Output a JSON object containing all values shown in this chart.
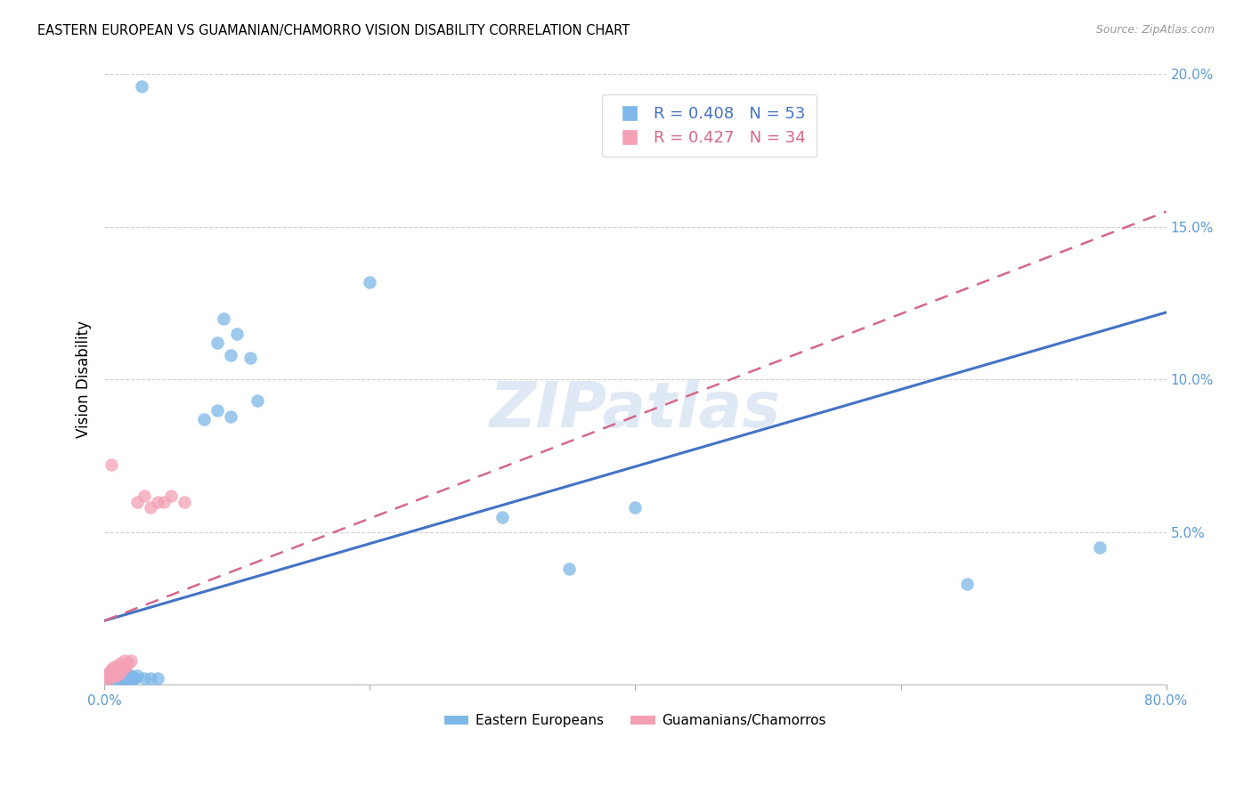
{
  "title": "EASTERN EUROPEAN VS GUAMANIAN/CHAMORRO VISION DISABILITY CORRELATION CHART",
  "source": "Source: ZipAtlas.com",
  "ylabel": "Vision Disability",
  "xlabel": "",
  "xlim": [
    0.0,
    0.8
  ],
  "ylim": [
    0.0,
    0.2
  ],
  "xticks": [
    0.0,
    0.2,
    0.4,
    0.6,
    0.8
  ],
  "yticks": [
    0.0,
    0.05,
    0.1,
    0.15,
    0.2
  ],
  "xtick_labels": [
    "0.0%",
    "",
    "",
    "",
    "80.0%"
  ],
  "ytick_labels": [
    "",
    "5.0%",
    "10.0%",
    "15.0%",
    "20.0%"
  ],
  "blue_color": "#7db8e8",
  "pink_color": "#f4a0b5",
  "blue_line_color": "#4472c4",
  "pink_line_color": "#d4688a",
  "legend_blue_r": "R = 0.408",
  "legend_blue_n": "N = 53",
  "legend_pink_r": "R = 0.427",
  "legend_pink_n": "N = 34",
  "legend_label_blue": "Eastern Europeans",
  "legend_label_pink": "Guamanians/Chamorros",
  "watermark": "ZIPatlas",
  "title_fontsize": 11,
  "axis_color": "#5b9bd5",
  "tick_color": "#5b9bd5",
  "blue_regression": [
    0.0,
    0.021,
    0.8,
    0.122
  ],
  "pink_regression": [
    0.0,
    0.021,
    0.8,
    0.155
  ],
  "blue_scatter": [
    [
      0.002,
      0.003
    ],
    [
      0.003,
      0.002
    ],
    [
      0.004,
      0.003
    ],
    [
      0.005,
      0.002
    ],
    [
      0.005,
      0.004
    ],
    [
      0.006,
      0.003
    ],
    [
      0.007,
      0.003
    ],
    [
      0.007,
      0.004
    ],
    [
      0.008,
      0.002
    ],
    [
      0.008,
      0.004
    ],
    [
      0.009,
      0.003
    ],
    [
      0.009,
      0.005
    ],
    [
      0.01,
      0.002
    ],
    [
      0.01,
      0.003
    ],
    [
      0.01,
      0.004
    ],
    [
      0.011,
      0.003
    ],
    [
      0.012,
      0.002
    ],
    [
      0.012,
      0.004
    ],
    [
      0.013,
      0.003
    ],
    [
      0.013,
      0.005
    ],
    [
      0.014,
      0.002
    ],
    [
      0.014,
      0.004
    ],
    [
      0.015,
      0.003
    ],
    [
      0.015,
      0.004
    ],
    [
      0.016,
      0.003
    ],
    [
      0.016,
      0.002
    ],
    [
      0.017,
      0.003
    ],
    [
      0.018,
      0.002
    ],
    [
      0.019,
      0.003
    ],
    [
      0.02,
      0.003
    ],
    [
      0.021,
      0.002
    ],
    [
      0.022,
      0.002
    ],
    [
      0.023,
      0.002
    ],
    [
      0.025,
      0.003
    ],
    [
      0.03,
      0.002
    ],
    [
      0.035,
      0.002
    ],
    [
      0.04,
      0.002
    ],
    [
      0.028,
      0.196
    ],
    [
      0.085,
      0.112
    ],
    [
      0.095,
      0.108
    ],
    [
      0.09,
      0.12
    ],
    [
      0.1,
      0.115
    ],
    [
      0.11,
      0.107
    ],
    [
      0.115,
      0.093
    ],
    [
      0.095,
      0.088
    ],
    [
      0.085,
      0.09
    ],
    [
      0.075,
      0.087
    ],
    [
      0.2,
      0.132
    ],
    [
      0.3,
      0.055
    ],
    [
      0.35,
      0.038
    ],
    [
      0.4,
      0.058
    ],
    [
      0.65,
      0.033
    ],
    [
      0.75,
      0.045
    ]
  ],
  "pink_scatter": [
    [
      0.001,
      0.003
    ],
    [
      0.002,
      0.002
    ],
    [
      0.003,
      0.003
    ],
    [
      0.003,
      0.004
    ],
    [
      0.004,
      0.002
    ],
    [
      0.004,
      0.004
    ],
    [
      0.005,
      0.003
    ],
    [
      0.005,
      0.005
    ],
    [
      0.006,
      0.003
    ],
    [
      0.006,
      0.005
    ],
    [
      0.007,
      0.003
    ],
    [
      0.007,
      0.006
    ],
    [
      0.008,
      0.004
    ],
    [
      0.008,
      0.005
    ],
    [
      0.009,
      0.003
    ],
    [
      0.009,
      0.006
    ],
    [
      0.01,
      0.004
    ],
    [
      0.01,
      0.006
    ],
    [
      0.011,
      0.005
    ],
    [
      0.012,
      0.004
    ],
    [
      0.012,
      0.007
    ],
    [
      0.013,
      0.005
    ],
    [
      0.015,
      0.008
    ],
    [
      0.016,
      0.006
    ],
    [
      0.018,
      0.007
    ],
    [
      0.02,
      0.008
    ],
    [
      0.005,
      0.072
    ],
    [
      0.025,
      0.06
    ],
    [
      0.03,
      0.062
    ],
    [
      0.035,
      0.058
    ],
    [
      0.04,
      0.06
    ],
    [
      0.045,
      0.06
    ],
    [
      0.05,
      0.062
    ],
    [
      0.06,
      0.06
    ]
  ]
}
